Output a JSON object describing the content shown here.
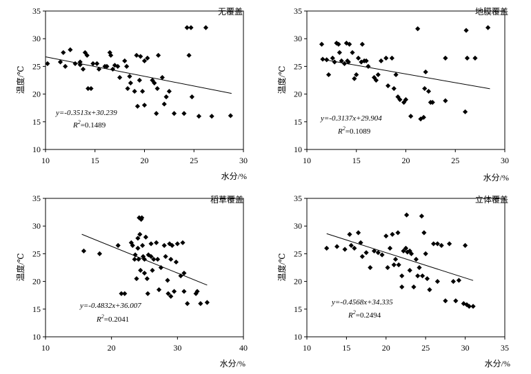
{
  "chart_data": [
    {
      "type": "scatter",
      "title": "无覆盖",
      "xlabel": "水分/%",
      "ylabel": "温度/℃",
      "xlim": [
        10,
        30
      ],
      "ylim": [
        10,
        35
      ],
      "xticks": [
        10,
        15,
        20,
        25,
        30
      ],
      "yticks": [
        10,
        15,
        20,
        25,
        30,
        35
      ],
      "grid": false,
      "fit": {
        "slope": -0.3513,
        "intercept": 30.239,
        "x_range": [
          10,
          28.8
        ]
      },
      "equation": "y=-0.3513x+30.239",
      "r2_label": "R",
      "r2_sup": "2",
      "r2_value": "=0.1489",
      "points": [
        [
          10.2,
          25.5
        ],
        [
          11.5,
          25.8
        ],
        [
          11.8,
          27.5
        ],
        [
          12,
          25
        ],
        [
          12.5,
          28
        ],
        [
          13,
          25.5
        ],
        [
          13.5,
          25.8
        ],
        [
          13.5,
          25.3
        ],
        [
          13.8,
          24.5
        ],
        [
          14,
          27.5
        ],
        [
          14.2,
          27
        ],
        [
          14.3,
          21
        ],
        [
          14.6,
          21
        ],
        [
          14.8,
          25.5
        ],
        [
          15.2,
          25.5
        ],
        [
          15.4,
          24.5
        ],
        [
          16,
          25
        ],
        [
          16.2,
          25
        ],
        [
          16.5,
          27.5
        ],
        [
          16.6,
          27
        ],
        [
          16.8,
          24.5
        ],
        [
          17,
          25.2
        ],
        [
          17.3,
          25
        ],
        [
          17.5,
          23
        ],
        [
          18,
          26
        ],
        [
          18.2,
          25
        ],
        [
          18.3,
          21
        ],
        [
          18.5,
          23.2
        ],
        [
          18.6,
          22
        ],
        [
          19,
          20.5
        ],
        [
          19.2,
          27
        ],
        [
          19.3,
          17.8
        ],
        [
          19.5,
          22.5
        ],
        [
          19.6,
          26.8
        ],
        [
          19.8,
          20.5
        ],
        [
          20,
          18
        ],
        [
          20,
          26
        ],
        [
          20.3,
          26.5
        ],
        [
          20.8,
          22.5
        ],
        [
          21,
          22
        ],
        [
          21.2,
          16.5
        ],
        [
          21.3,
          21
        ],
        [
          21.4,
          27
        ],
        [
          21.8,
          23
        ],
        [
          22,
          18.2
        ],
        [
          22.2,
          19.5
        ],
        [
          22.5,
          20.5
        ],
        [
          23,
          16.5
        ],
        [
          24,
          16.5
        ],
        [
          24.3,
          32
        ],
        [
          24.5,
          27
        ],
        [
          24.7,
          32
        ],
        [
          24.8,
          19.5
        ],
        [
          25.5,
          16
        ],
        [
          26.2,
          32
        ],
        [
          26.8,
          16
        ],
        [
          28.7,
          16.1
        ]
      ]
    },
    {
      "type": "scatter",
      "title": "地膜覆盖",
      "xlabel": "水分/%",
      "ylabel": "温度/℃",
      "xlim": [
        10,
        30
      ],
      "ylim": [
        10,
        35
      ],
      "xticks": [
        10,
        15,
        20,
        25,
        30
      ],
      "yticks": [
        10,
        15,
        20,
        25,
        30,
        35
      ],
      "grid": false,
      "fit": {
        "slope": -0.3137,
        "intercept": 29.904,
        "x_range": [
          11.5,
          28.5
        ]
      },
      "equation": "y=-0.3137x+29.904",
      "r2_label": "R",
      "r2_sup": "2",
      "r2_value": "=0.1089",
      "points": [
        [
          11.5,
          29
        ],
        [
          11.6,
          26.3
        ],
        [
          12,
          26.2
        ],
        [
          12.2,
          23.5
        ],
        [
          12.6,
          26.5
        ],
        [
          12.8,
          25.8
        ],
        [
          13,
          29.2
        ],
        [
          13.2,
          29
        ],
        [
          13.3,
          27.5
        ],
        [
          13.5,
          26
        ],
        [
          13.8,
          25.5
        ],
        [
          14,
          29.2
        ],
        [
          14.1,
          26
        ],
        [
          14.2,
          25.8
        ],
        [
          14.3,
          29
        ],
        [
          14.6,
          27.5
        ],
        [
          14.8,
          22.8
        ],
        [
          15,
          23.5
        ],
        [
          15.2,
          26.5
        ],
        [
          15.5,
          25.8
        ],
        [
          15.6,
          29
        ],
        [
          15.8,
          26
        ],
        [
          16,
          26
        ],
        [
          16.2,
          25
        ],
        [
          16.8,
          23
        ],
        [
          17,
          22.5
        ],
        [
          17.2,
          23.5
        ],
        [
          17.5,
          26
        ],
        [
          18,
          26.5
        ],
        [
          18.2,
          21.5
        ],
        [
          18.6,
          26.5
        ],
        [
          18.8,
          21
        ],
        [
          19,
          23.5
        ],
        [
          19.2,
          19.5
        ],
        [
          19.4,
          19
        ],
        [
          19.8,
          18.5
        ],
        [
          20,
          19
        ],
        [
          20.5,
          16
        ],
        [
          21.2,
          31.8
        ],
        [
          21.5,
          15.5
        ],
        [
          21.8,
          15.8
        ],
        [
          21.9,
          21
        ],
        [
          22,
          24
        ],
        [
          22.3,
          20.5
        ],
        [
          22.5,
          18.5
        ],
        [
          22.7,
          18.5
        ],
        [
          24,
          26.5
        ],
        [
          24,
          18.8
        ],
        [
          26,
          16.8
        ],
        [
          26.1,
          31.5
        ],
        [
          26.2,
          26.5
        ],
        [
          27,
          26.5
        ],
        [
          28.3,
          32
        ]
      ]
    },
    {
      "type": "scatter",
      "title": "稻草覆盖",
      "xlabel": "水分/%",
      "ylabel": "温度/℃",
      "xlim": [
        10,
        40
      ],
      "ylim": [
        10,
        35
      ],
      "xticks": [
        10,
        20,
        30,
        40
      ],
      "yticks": [
        10,
        15,
        20,
        25,
        30,
        35
      ],
      "grid": false,
      "fit": {
        "slope": -0.4832,
        "intercept": 36.007,
        "x_range": [
          15.5,
          34.5
        ]
      },
      "equation": "y=-0.4832x+36.007",
      "r2_label": "R",
      "r2_sup": "2",
      "r2_value": "=0.2041",
      "points": [
        [
          15.8,
          25.5
        ],
        [
          18.2,
          25
        ],
        [
          21,
          26.5
        ],
        [
          21.5,
          17.8
        ],
        [
          22,
          17.8
        ],
        [
          23,
          27
        ],
        [
          23.2,
          26.5
        ],
        [
          23.5,
          24
        ],
        [
          23.6,
          24.8
        ],
        [
          23.8,
          20.5
        ],
        [
          24,
          27.8
        ],
        [
          24,
          26
        ],
        [
          24.1,
          24
        ],
        [
          24.2,
          31.5
        ],
        [
          24.3,
          28.5
        ],
        [
          24.4,
          22
        ],
        [
          24.5,
          31.2
        ],
        [
          24.6,
          31.5
        ],
        [
          24.7,
          26.5
        ],
        [
          24.8,
          24.5
        ],
        [
          25,
          24
        ],
        [
          25,
          21.5
        ],
        [
          25.2,
          28
        ],
        [
          25.4,
          20.5
        ],
        [
          25.5,
          17.8
        ],
        [
          25.6,
          24.8
        ],
        [
          26,
          26.8
        ],
        [
          26,
          24.5
        ],
        [
          26.2,
          22
        ],
        [
          26.4,
          24
        ],
        [
          26.8,
          27
        ],
        [
          27,
          24
        ],
        [
          27.2,
          18.5
        ],
        [
          27.5,
          22.5
        ],
        [
          28,
          26.5
        ],
        [
          28.2,
          24.5
        ],
        [
          28.5,
          20.2
        ],
        [
          28.6,
          17.8
        ],
        [
          28.8,
          26.8
        ],
        [
          29,
          24
        ],
        [
          29,
          17.3
        ],
        [
          29.2,
          26.5
        ],
        [
          29.5,
          18.2
        ],
        [
          29.8,
          23.5
        ],
        [
          30,
          26.8
        ],
        [
          30.5,
          21
        ],
        [
          30.8,
          27
        ],
        [
          31,
          21.5
        ],
        [
          31,
          18.2
        ],
        [
          31.5,
          16
        ],
        [
          32.8,
          17.8
        ],
        [
          33,
          18.2
        ],
        [
          33.5,
          16
        ],
        [
          34.5,
          16.2
        ]
      ]
    },
    {
      "type": "scatter",
      "title": "立体覆盖",
      "xlabel": "水分/%",
      "ylabel": "温度/℃",
      "xlim": [
        10,
        35
      ],
      "ylim": [
        10,
        35
      ],
      "xticks": [
        10,
        15,
        20,
        25,
        30,
        35
      ],
      "yticks": [
        10,
        15,
        20,
        25,
        30,
        35
      ],
      "grid": false,
      "fit": {
        "slope": -0.4568,
        "intercept": 34.335,
        "x_range": [
          12.5,
          31
        ]
      },
      "equation": "y=-0.4568x+34.335",
      "r2_label": "R",
      "r2_sup": "2",
      "r2_value": "=0.2494",
      "points": [
        [
          12.5,
          26
        ],
        [
          13.8,
          26.3
        ],
        [
          14.8,
          25.8
        ],
        [
          15.4,
          28.5
        ],
        [
          15.6,
          26.5
        ],
        [
          16,
          26
        ],
        [
          16.5,
          28.8
        ],
        [
          16.8,
          27
        ],
        [
          17,
          24.5
        ],
        [
          17.5,
          25.2
        ],
        [
          18,
          22.5
        ],
        [
          18.5,
          25.5
        ],
        [
          19,
          25.2
        ],
        [
          19.5,
          24.8
        ],
        [
          20,
          28.2
        ],
        [
          20.2,
          22.5
        ],
        [
          20.5,
          26
        ],
        [
          20.8,
          28.5
        ],
        [
          21,
          23
        ],
        [
          21.2,
          24
        ],
        [
          21.5,
          28.8
        ],
        [
          21.6,
          23
        ],
        [
          22,
          21
        ],
        [
          22,
          19
        ],
        [
          22.2,
          25.5
        ],
        [
          22.5,
          26
        ],
        [
          22.6,
          32
        ],
        [
          22.7,
          25.3
        ],
        [
          23,
          25.5
        ],
        [
          23,
          22
        ],
        [
          23.2,
          25
        ],
        [
          23.5,
          19
        ],
        [
          23.8,
          24
        ],
        [
          24,
          21
        ],
        [
          24.2,
          22.5
        ],
        [
          24.5,
          31.8
        ],
        [
          24.6,
          21
        ],
        [
          24.8,
          28.8
        ],
        [
          25,
          25
        ],
        [
          25.2,
          20.5
        ],
        [
          25.5,
          18.5
        ],
        [
          26,
          26.8
        ],
        [
          26.5,
          20
        ],
        [
          26.5,
          26.8
        ],
        [
          27,
          26.5
        ],
        [
          27.5,
          16.5
        ],
        [
          28,
          26.8
        ],
        [
          28.5,
          20
        ],
        [
          28.8,
          16.5
        ],
        [
          29.2,
          20.2
        ],
        [
          29.8,
          16
        ],
        [
          30,
          26.5
        ],
        [
          30.2,
          15.8
        ],
        [
          30.5,
          15.5
        ],
        [
          31,
          15.5
        ]
      ]
    }
  ]
}
